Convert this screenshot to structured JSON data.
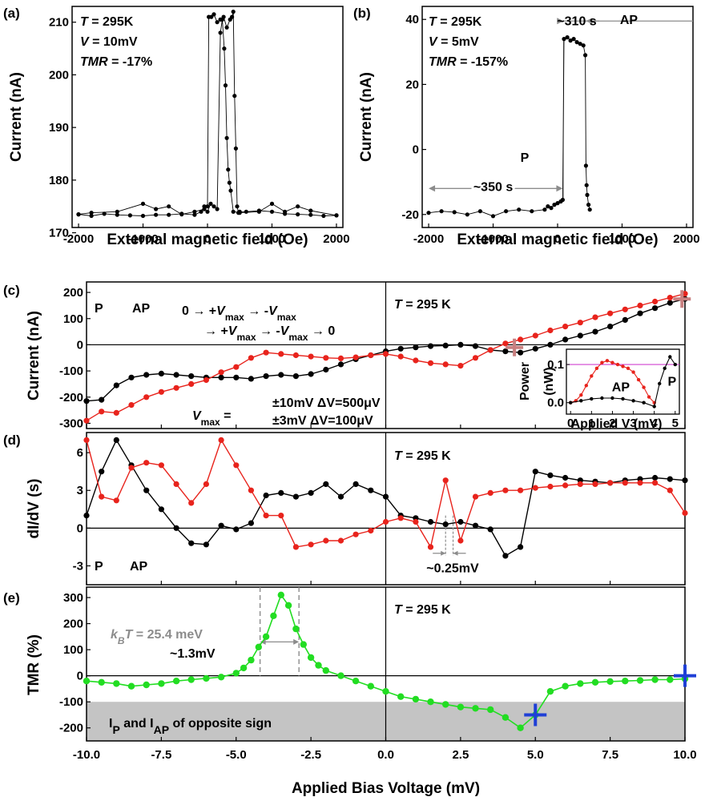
{
  "colors": {
    "black": "#000000",
    "red": "#e8231c",
    "green": "#22dd22",
    "gray_band": "#c4c4c4",
    "annotation_gray": "#8c8c8c",
    "marker_blue": "#1f3fd6",
    "marker_rose": "#c98080",
    "magenta": "#d040d0"
  },
  "chart_data": [
    {
      "id": "a",
      "type": "scatter",
      "panel_label": "(a)",
      "xlabel": "External magnetic field (Oe)",
      "ylabel": "Current (nA)",
      "xlim": [
        -2100,
        2100
      ],
      "ylim": [
        171,
        213
      ],
      "xticks": [
        "-2000",
        "-1000",
        "0",
        "1000",
        "2000"
      ],
      "yticks": [
        "170",
        "180",
        "190",
        "200",
        "210"
      ],
      "annotations": [
        "T = 295K",
        "V = 10mV",
        "TMR = -17%"
      ],
      "series": [
        {
          "values": [
            [
              -2000,
              173.5
            ],
            [
              -1800,
              173.2
            ],
            [
              -1600,
              173.6
            ],
            [
              -1400,
              173.4
            ],
            [
              -1200,
              173.3
            ],
            [
              -1000,
              173.2
            ],
            [
              -800,
              173.4
            ],
            [
              -600,
              173.4
            ],
            [
              -400,
              173.6
            ],
            [
              -200,
              173.4
            ],
            [
              -100,
              174.0
            ],
            [
              -50,
              175.0
            ],
            [
              0,
              175.0
            ],
            [
              20,
              211.0
            ],
            [
              60,
              211.0
            ],
            [
              100,
              211.5
            ],
            [
              150,
              210.0
            ],
            [
              200,
              210.5
            ],
            [
              250,
              211.0
            ],
            [
              300,
              209.0
            ],
            [
              350,
              210.5
            ],
            [
              380,
              211.0
            ],
            [
              400,
              212.0
            ],
            [
              420,
              196.0
            ],
            [
              440,
              186.0
            ],
            [
              460,
              175.0
            ],
            [
              480,
              173.8
            ],
            [
              500,
              174.0
            ],
            [
              600,
              174.0
            ],
            [
              800,
              174.2
            ],
            [
              1000,
              174.0
            ],
            [
              1200,
              173.6
            ],
            [
              1400,
              173.5
            ],
            [
              1600,
              173.4
            ],
            [
              1800,
              173.2
            ],
            [
              2000,
              173.3
            ]
          ]
        },
        {
          "values": [
            [
              -2000,
              173.5
            ],
            [
              -1800,
              173.8
            ],
            [
              -1400,
              174.0
            ],
            [
              -1000,
              175.5
            ],
            [
              -800,
              174.5
            ],
            [
              -600,
              175.0
            ],
            [
              -400,
              173.5
            ],
            [
              -200,
              174.0
            ],
            [
              -50,
              174.5
            ],
            [
              0,
              174.0
            ],
            [
              50,
              175.5
            ],
            [
              100,
              175.0
            ],
            [
              150,
              174.5
            ],
            [
              200,
              208.0
            ],
            [
              230,
              210.5
            ],
            [
              260,
              205.0
            ],
            [
              280,
              198.0
            ],
            [
              300,
              188.0
            ],
            [
              320,
              182.0
            ],
            [
              340,
              179.5
            ],
            [
              360,
              178.0
            ],
            [
              400,
              174.0
            ],
            [
              500,
              173.8
            ],
            [
              800,
              174.0
            ],
            [
              1000,
              175.5
            ],
            [
              1200,
              174.0
            ],
            [
              1400,
              175.0
            ],
            [
              1600,
              174.2
            ],
            [
              2000,
              173.3
            ]
          ]
        }
      ]
    },
    {
      "id": "b",
      "type": "scatter",
      "panel_label": "(b)",
      "xlabel": "External magnetic field (Oe)",
      "ylabel": "Current (nA)",
      "xlim": [
        -2100,
        2100
      ],
      "ylim": [
        -24,
        44
      ],
      "xticks": [
        "-2000",
        "-1000",
        "0",
        "1000",
        "2000"
      ],
      "yticks": [
        "-20",
        "0",
        "20",
        "40"
      ],
      "annotations": [
        "T = 295K",
        "V = 5mV",
        "TMR = -157%",
        "P",
        "AP",
        "~350 s",
        "~310 s"
      ],
      "series": [
        {
          "values": [
            [
              -2000,
              -19.5
            ],
            [
              -1800,
              -19.0
            ],
            [
              -1600,
              -19.3
            ],
            [
              -1400,
              -20.0
            ],
            [
              -1200,
              -19.0
            ],
            [
              -1000,
              -20.5
            ],
            [
              -800,
              -19.0
            ],
            [
              -600,
              -18.5
            ],
            [
              -400,
              -19.0
            ],
            [
              -200,
              -18.5
            ],
            [
              -150,
              -17.5
            ],
            [
              -100,
              -18.0
            ],
            [
              -50,
              -17.0
            ],
            [
              0,
              -16.5
            ],
            [
              50,
              -16.0
            ],
            [
              80,
              -15.5
            ],
            [
              100,
              34.0
            ],
            [
              150,
              34.5
            ],
            [
              200,
              33.5
            ],
            [
              250,
              34.0
            ],
            [
              300,
              33.0
            ],
            [
              350,
              32.5
            ],
            [
              400,
              32.0
            ],
            [
              430,
              29.0
            ],
            [
              440,
              -5.0
            ],
            [
              450,
              -11.0
            ],
            [
              460,
              -14.0
            ],
            [
              480,
              -17.0
            ],
            [
              500,
              -18.5
            ]
          ]
        }
      ]
    },
    {
      "id": "c",
      "type": "line",
      "panel_label": "(c)",
      "ylabel": "Current (nA)",
      "xlim": [
        -10,
        10
      ],
      "ylim": [
        -320,
        240
      ],
      "yticks": [
        "-300",
        "-200",
        "-100",
        "0",
        "100",
        "200"
      ],
      "legend": [
        "P",
        "AP"
      ],
      "annotations": {
        "temperature": "T = 295 K",
        "sweep_line1": "0 → +Vmax → -Vmax",
        "sweep_line2": "→ +Vmax → -Vmax → 0",
        "vmax_label": "Vmax =",
        "vmax_line1": "±10mV ΔV=500μV",
        "vmax_line2": "±3mV ΔV=100μV"
      },
      "series": [
        {
          "name": "P",
          "x": [
            -10,
            -9.5,
            -9,
            -8.5,
            -8,
            -7.5,
            -7,
            -6.5,
            -6,
            -5.5,
            -5,
            -4.5,
            -4,
            -3.5,
            -3,
            -2.5,
            -2,
            -1.5,
            -1,
            -0.5,
            0,
            0.5,
            1,
            1.5,
            2,
            2.5,
            3,
            3.5,
            4,
            4.5,
            5,
            5.5,
            6,
            6.5,
            7,
            7.5,
            8,
            8.5,
            9,
            9.5,
            10
          ],
          "values": [
            -215,
            -210,
            -155,
            -125,
            -115,
            -110,
            -115,
            -120,
            -125,
            -125,
            -125,
            -130,
            -120,
            -115,
            -120,
            -112,
            -95,
            -75,
            -55,
            -40,
            -25,
            -15,
            -10,
            -5,
            -3,
            0,
            -5,
            -20,
            -25,
            -30,
            -15,
            0,
            20,
            35,
            50,
            70,
            95,
            120,
            140,
            160,
            175
          ]
        },
        {
          "name": "AP",
          "x": [
            -10,
            -9.5,
            -9,
            -8.5,
            -8,
            -7.5,
            -7,
            -6.5,
            -6,
            -5.5,
            -5,
            -4.5,
            -4,
            -3.5,
            -3,
            -2.5,
            -2,
            -1.5,
            -1,
            -0.5,
            0,
            0.5,
            1,
            1.5,
            2,
            2.5,
            3,
            3.5,
            4,
            4.5,
            5,
            5.5,
            6,
            6.5,
            7,
            7.5,
            8,
            8.5,
            9,
            9.5,
            10
          ],
          "values": [
            -290,
            -255,
            -260,
            -230,
            -200,
            -180,
            -165,
            -150,
            -135,
            -105,
            -85,
            -50,
            -30,
            -35,
            -40,
            -45,
            -50,
            -52,
            -48,
            -40,
            -35,
            -45,
            -60,
            -70,
            -75,
            -80,
            -50,
            -20,
            5,
            20,
            35,
            55,
            70,
            85,
            105,
            120,
            135,
            150,
            165,
            180,
            195
          ]
        }
      ]
    },
    {
      "id": "c_inset",
      "type": "line",
      "xlabel": "Applied V (mV)",
      "ylabel": "Power (nW)",
      "xlim": [
        -0.2,
        5.2
      ],
      "ylim": [
        -0.03,
        0.14
      ],
      "xticks": [
        "0",
        "1",
        "2",
        "3",
        "4",
        "5"
      ],
      "yticks": [
        "0.0",
        "0.1"
      ],
      "labels": [
        "AP",
        "P"
      ],
      "series": [
        {
          "name": "AP",
          "x": [
            0,
            0.25,
            0.5,
            0.75,
            1,
            1.25,
            1.5,
            1.75,
            2,
            2.25,
            2.5,
            2.75,
            3,
            3.25,
            3.5,
            3.75,
            4
          ],
          "values": [
            0,
            0.005,
            0.02,
            0.045,
            0.07,
            0.09,
            0.105,
            0.11,
            0.105,
            0.1,
            0.095,
            0.09,
            0.08,
            0.06,
            0.04,
            0.015,
            0
          ]
        },
        {
          "name": "P",
          "x": [
            0,
            0.5,
            1,
            1.5,
            2,
            2.5,
            3,
            3.5,
            4,
            4.25,
            4.5,
            4.75,
            5
          ],
          "values": [
            0,
            0.005,
            0.01,
            0.012,
            0.012,
            0.01,
            0.005,
            0,
            -0.01,
            0.05,
            0.09,
            0.12,
            0.1
          ]
        }
      ]
    },
    {
      "id": "d",
      "type": "line",
      "panel_label": "(d)",
      "ylabel": "dI/dV (s)",
      "xlim": [
        -10,
        10
      ],
      "ylim": [
        -4.5,
        7.6
      ],
      "yticks": [
        "-3",
        "0",
        "3",
        "6"
      ],
      "legend": [
        "P",
        "AP"
      ],
      "annotations": {
        "temperature": "T = 295 K",
        "spacing": "~0.25mV"
      },
      "series": [
        {
          "name": "P",
          "x": [
            -10,
            -9.5,
            -9,
            -8.5,
            -8,
            -7.5,
            -7,
            -6.5,
            -6,
            -5.5,
            -5,
            -4.5,
            -4,
            -3.5,
            -3,
            -2.5,
            -2,
            -1.5,
            -1,
            -0.5,
            0,
            0.5,
            1,
            1.5,
            2,
            2.5,
            3,
            3.5,
            4,
            4.5,
            5,
            5.5,
            6,
            6.5,
            7,
            7.5,
            8,
            8.5,
            9,
            9.5,
            10
          ],
          "values": [
            1,
            4.5,
            7,
            5,
            3,
            1.5,
            0,
            -1.2,
            -1.3,
            0.2,
            -0.1,
            0.4,
            2.6,
            2.8,
            2.5,
            2.8,
            3.5,
            2.5,
            3.5,
            3,
            2.5,
            1,
            0.8,
            0.5,
            0.3,
            0.5,
            0.2,
            -0.1,
            -2.2,
            -1.5,
            4.5,
            4.2,
            4,
            3.8,
            3.7,
            3.6,
            3.8,
            3.9,
            4,
            3.9,
            3.8
          ]
        },
        {
          "name": "AP",
          "x": [
            -10,
            -9.5,
            -9,
            -8.5,
            -8,
            -7.5,
            -7,
            -6.5,
            -6,
            -5.5,
            -5,
            -4.5,
            -4,
            -3.5,
            -3,
            -2.5,
            -2,
            -1.5,
            -1,
            -0.5,
            0,
            0.5,
            1,
            1.5,
            2,
            2.5,
            3,
            3.5,
            4,
            4.5,
            5,
            5.5,
            6,
            6.5,
            7,
            7.5,
            8,
            8.5,
            9,
            9.5,
            10
          ],
          "values": [
            7,
            2.5,
            2.2,
            4.8,
            5.2,
            5,
            3.5,
            2,
            3.5,
            7,
            5,
            3,
            1,
            1,
            -1.5,
            -1.3,
            -1,
            -1,
            -0.5,
            -0.2,
            0.5,
            0.8,
            0.5,
            -1.5,
            3.8,
            -1,
            2.5,
            2.8,
            3,
            3,
            3.2,
            3.3,
            3.4,
            3.5,
            3.5,
            3.6,
            3.6,
            3.6,
            3.6,
            3,
            1.2
          ]
        }
      ]
    },
    {
      "id": "e",
      "type": "line",
      "panel_label": "(e)",
      "xlabel": "Applied Bias Voltage (mV)",
      "ylabel": "TMR (%)",
      "xlim": [
        -10,
        10
      ],
      "ylim": [
        -250,
        340
      ],
      "xticks": [
        "-10.0",
        "-7.5",
        "-5.0",
        "-2.5",
        "0.0",
        "2.5",
        "5.0",
        "7.5",
        "10.0"
      ],
      "yticks": [
        "-200",
        "-100",
        "0",
        "100",
        "200",
        "300"
      ],
      "shaded_region": {
        "y_from": -250,
        "y_to": -100,
        "label_main": "I",
        "label_sub1": "P",
        "label_mid": " and I",
        "label_sub2": "AP",
        "label_end": " of opposite sign"
      },
      "annotations": {
        "temperature": "T = 295 K",
        "kbt_k": "k",
        "kbt_b": "B",
        "kbt_rest": "T = 25.4 meV",
        "width": "~1.3mV"
      },
      "markers": [
        {
          "x": 5,
          "y": -150,
          "color": "blue"
        },
        {
          "x": 10,
          "y": 0,
          "color": "blue"
        }
      ],
      "series": [
        {
          "name": "TMR",
          "x": [
            -10,
            -9.5,
            -9,
            -8.5,
            -8,
            -7.5,
            -7,
            -6.5,
            -6,
            -5.5,
            -5,
            -4.75,
            -4.5,
            -4.25,
            -4,
            -3.75,
            -3.5,
            -3.25,
            -3,
            -2.75,
            -2.5,
            -2.25,
            -2,
            -1.5,
            -1,
            -0.5,
            0,
            0.5,
            1,
            1.5,
            2,
            2.5,
            3,
            3.5,
            4,
            4.5,
            5,
            5.5,
            6,
            6.5,
            7,
            7.5,
            8,
            8.5,
            9,
            9.5,
            10
          ],
          "values": [
            -20,
            -25,
            -30,
            -40,
            -35,
            -30,
            -20,
            -15,
            -10,
            -5,
            10,
            30,
            60,
            110,
            150,
            230,
            310,
            270,
            180,
            120,
            70,
            40,
            20,
            0,
            -20,
            -40,
            -60,
            -80,
            -90,
            -100,
            -110,
            -120,
            -125,
            -130,
            -160,
            -200,
            -150,
            -60,
            -40,
            -30,
            -25,
            -22,
            -20,
            -18,
            -15,
            -15,
            -12
          ]
        }
      ]
    }
  ]
}
